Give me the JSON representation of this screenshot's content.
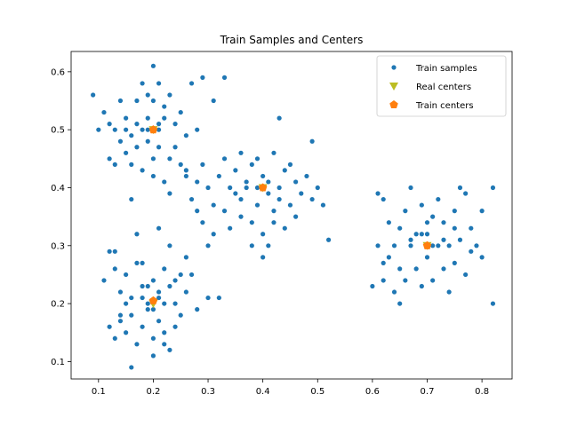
{
  "chart_data": {
    "type": "scatter",
    "title": "Train Samples and Centers",
    "xlabel": "",
    "ylabel": "",
    "xlim": [
      0.05,
      0.855
    ],
    "ylim": [
      0.07,
      0.635
    ],
    "xticks": [
      "0.1",
      "0.2",
      "0.3",
      "0.4",
      "0.5",
      "0.6",
      "0.7",
      "0.8"
    ],
    "yticks": [
      "0.1",
      "0.2",
      "0.3",
      "0.4",
      "0.5",
      "0.6"
    ],
    "grid": false,
    "legend_position": "top-right",
    "series": [
      {
        "name": "Train samples",
        "marker": "circle",
        "color": "#1f77b4",
        "points": [
          [
            0.09,
            0.56
          ],
          [
            0.1,
            0.5
          ],
          [
            0.11,
            0.53
          ],
          [
            0.12,
            0.45
          ],
          [
            0.13,
            0.5
          ],
          [
            0.14,
            0.55
          ],
          [
            0.15,
            0.52
          ],
          [
            0.16,
            0.49
          ],
          [
            0.17,
            0.55
          ],
          [
            0.18,
            0.58
          ],
          [
            0.19,
            0.52
          ],
          [
            0.2,
            0.55
          ],
          [
            0.21,
            0.5
          ],
          [
            0.22,
            0.54
          ],
          [
            0.23,
            0.56
          ],
          [
            0.24,
            0.47
          ],
          [
            0.25,
            0.44
          ],
          [
            0.26,
            0.49
          ],
          [
            0.15,
            0.46
          ],
          [
            0.16,
            0.44
          ],
          [
            0.17,
            0.47
          ],
          [
            0.18,
            0.5
          ],
          [
            0.19,
            0.48
          ],
          [
            0.21,
            0.47
          ],
          [
            0.22,
            0.52
          ],
          [
            0.23,
            0.45
          ],
          [
            0.24,
            0.51
          ],
          [
            0.18,
            0.43
          ],
          [
            0.2,
            0.45
          ],
          [
            0.25,
            0.53
          ],
          [
            0.27,
            0.58
          ],
          [
            0.29,
            0.59
          ],
          [
            0.33,
            0.59
          ],
          [
            0.28,
            0.5
          ],
          [
            0.31,
            0.55
          ],
          [
            0.14,
            0.48
          ],
          [
            0.12,
            0.51
          ],
          [
            0.2,
            0.61
          ],
          [
            0.19,
            0.56
          ],
          [
            0.21,
            0.58
          ],
          [
            0.16,
            0.38
          ],
          [
            0.22,
            0.41
          ],
          [
            0.23,
            0.39
          ],
          [
            0.17,
            0.51
          ],
          [
            0.13,
            0.44
          ],
          [
            0.2,
            0.42
          ],
          [
            0.26,
            0.43
          ],
          [
            0.19,
            0.5
          ],
          [
            0.21,
            0.51
          ],
          [
            0.15,
            0.5
          ],
          [
            0.26,
            0.42
          ],
          [
            0.27,
            0.38
          ],
          [
            0.28,
            0.41
          ],
          [
            0.29,
            0.44
          ],
          [
            0.3,
            0.4
          ],
          [
            0.31,
            0.37
          ],
          [
            0.32,
            0.42
          ],
          [
            0.33,
            0.36
          ],
          [
            0.34,
            0.4
          ],
          [
            0.35,
            0.43
          ],
          [
            0.36,
            0.38
          ],
          [
            0.37,
            0.41
          ],
          [
            0.38,
            0.44
          ],
          [
            0.39,
            0.37
          ],
          [
            0.4,
            0.42
          ],
          [
            0.41,
            0.39
          ],
          [
            0.42,
            0.36
          ],
          [
            0.43,
            0.4
          ],
          [
            0.44,
            0.43
          ],
          [
            0.45,
            0.37
          ],
          [
            0.46,
            0.41
          ],
          [
            0.47,
            0.39
          ],
          [
            0.48,
            0.42
          ],
          [
            0.49,
            0.38
          ],
          [
            0.5,
            0.4
          ],
          [
            0.51,
            0.37
          ],
          [
            0.29,
            0.34
          ],
          [
            0.31,
            0.32
          ],
          [
            0.34,
            0.33
          ],
          [
            0.36,
            0.35
          ],
          [
            0.38,
            0.34
          ],
          [
            0.4,
            0.32
          ],
          [
            0.42,
            0.34
          ],
          [
            0.44,
            0.33
          ],
          [
            0.46,
            0.35
          ],
          [
            0.33,
            0.45
          ],
          [
            0.36,
            0.46
          ],
          [
            0.39,
            0.45
          ],
          [
            0.42,
            0.46
          ],
          [
            0.45,
            0.44
          ],
          [
            0.4,
            0.28
          ],
          [
            0.41,
            0.3
          ],
          [
            0.38,
            0.3
          ],
          [
            0.43,
            0.52
          ],
          [
            0.49,
            0.48
          ],
          [
            0.52,
            0.31
          ],
          [
            0.28,
            0.36
          ],
          [
            0.35,
            0.39
          ],
          [
            0.37,
            0.4
          ],
          [
            0.41,
            0.41
          ],
          [
            0.43,
            0.38
          ],
          [
            0.39,
            0.4
          ],
          [
            0.11,
            0.24
          ],
          [
            0.12,
            0.29
          ],
          [
            0.13,
            0.26
          ],
          [
            0.14,
            0.22
          ],
          [
            0.15,
            0.25
          ],
          [
            0.16,
            0.21
          ],
          [
            0.17,
            0.27
          ],
          [
            0.18,
            0.23
          ],
          [
            0.19,
            0.2
          ],
          [
            0.2,
            0.24
          ],
          [
            0.21,
            0.22
          ],
          [
            0.22,
            0.26
          ],
          [
            0.23,
            0.23
          ],
          [
            0.24,
            0.2
          ],
          [
            0.25,
            0.25
          ],
          [
            0.26,
            0.22
          ],
          [
            0.27,
            0.25
          ],
          [
            0.28,
            0.19
          ],
          [
            0.3,
            0.21
          ],
          [
            0.12,
            0.16
          ],
          [
            0.13,
            0.14
          ],
          [
            0.14,
            0.17
          ],
          [
            0.15,
            0.15
          ],
          [
            0.16,
            0.18
          ],
          [
            0.17,
            0.13
          ],
          [
            0.18,
            0.16
          ],
          [
            0.19,
            0.19
          ],
          [
            0.2,
            0.14
          ],
          [
            0.21,
            0.17
          ],
          [
            0.22,
            0.15
          ],
          [
            0.23,
            0.12
          ],
          [
            0.24,
            0.16
          ],
          [
            0.25,
            0.18
          ],
          [
            0.16,
            0.09
          ],
          [
            0.2,
            0.11
          ],
          [
            0.22,
            0.13
          ],
          [
            0.17,
            0.32
          ],
          [
            0.21,
            0.33
          ],
          [
            0.23,
            0.3
          ],
          [
            0.26,
            0.28
          ],
          [
            0.3,
            0.3
          ],
          [
            0.32,
            0.21
          ],
          [
            0.13,
            0.29
          ],
          [
            0.15,
            0.2
          ],
          [
            0.18,
            0.21
          ],
          [
            0.19,
            0.23
          ],
          [
            0.21,
            0.21
          ],
          [
            0.2,
            0.19
          ],
          [
            0.22,
            0.2
          ],
          [
            0.18,
            0.27
          ],
          [
            0.24,
            0.24
          ],
          [
            0.14,
            0.18
          ],
          [
            0.6,
            0.23
          ],
          [
            0.61,
            0.3
          ],
          [
            0.61,
            0.39
          ],
          [
            0.62,
            0.24
          ],
          [
            0.63,
            0.34
          ],
          [
            0.63,
            0.28
          ],
          [
            0.64,
            0.3
          ],
          [
            0.64,
            0.22
          ],
          [
            0.65,
            0.33
          ],
          [
            0.65,
            0.26
          ],
          [
            0.66,
            0.24
          ],
          [
            0.66,
            0.36
          ],
          [
            0.67,
            0.4
          ],
          [
            0.67,
            0.3
          ],
          [
            0.68,
            0.32
          ],
          [
            0.68,
            0.26
          ],
          [
            0.69,
            0.37
          ],
          [
            0.69,
            0.23
          ],
          [
            0.7,
            0.32
          ],
          [
            0.7,
            0.28
          ],
          [
            0.71,
            0.35
          ],
          [
            0.71,
            0.24
          ],
          [
            0.72,
            0.3
          ],
          [
            0.72,
            0.38
          ],
          [
            0.73,
            0.26
          ],
          [
            0.73,
            0.34
          ],
          [
            0.74,
            0.22
          ],
          [
            0.74,
            0.3
          ],
          [
            0.75,
            0.36
          ],
          [
            0.75,
            0.27
          ],
          [
            0.76,
            0.4
          ],
          [
            0.76,
            0.31
          ],
          [
            0.77,
            0.25
          ],
          [
            0.77,
            0.39
          ],
          [
            0.78,
            0.33
          ],
          [
            0.78,
            0.29
          ],
          [
            0.79,
            0.3
          ],
          [
            0.8,
            0.36
          ],
          [
            0.8,
            0.28
          ],
          [
            0.82,
            0.4
          ],
          [
            0.82,
            0.2
          ],
          [
            0.62,
            0.38
          ],
          [
            0.65,
            0.2
          ],
          [
            0.7,
            0.34
          ],
          [
            0.73,
            0.31
          ],
          [
            0.75,
            0.33
          ],
          [
            0.67,
            0.31
          ],
          [
            0.69,
            0.32
          ],
          [
            0.71,
            0.3
          ],
          [
            0.62,
            0.27
          ]
        ]
      },
      {
        "name": "Real centers",
        "marker": "triangle-down",
        "color": "#bcbd22",
        "points": [
          [
            0.2,
            0.5
          ],
          [
            0.4,
            0.4
          ],
          [
            0.2,
            0.2
          ],
          [
            0.7,
            0.3
          ]
        ]
      },
      {
        "name": "Train centers",
        "marker": "pentagon",
        "color": "#ff7f0e",
        "points": [
          [
            0.2,
            0.5
          ],
          [
            0.4,
            0.4
          ],
          [
            0.2,
            0.205
          ],
          [
            0.7,
            0.3
          ]
        ]
      }
    ]
  }
}
